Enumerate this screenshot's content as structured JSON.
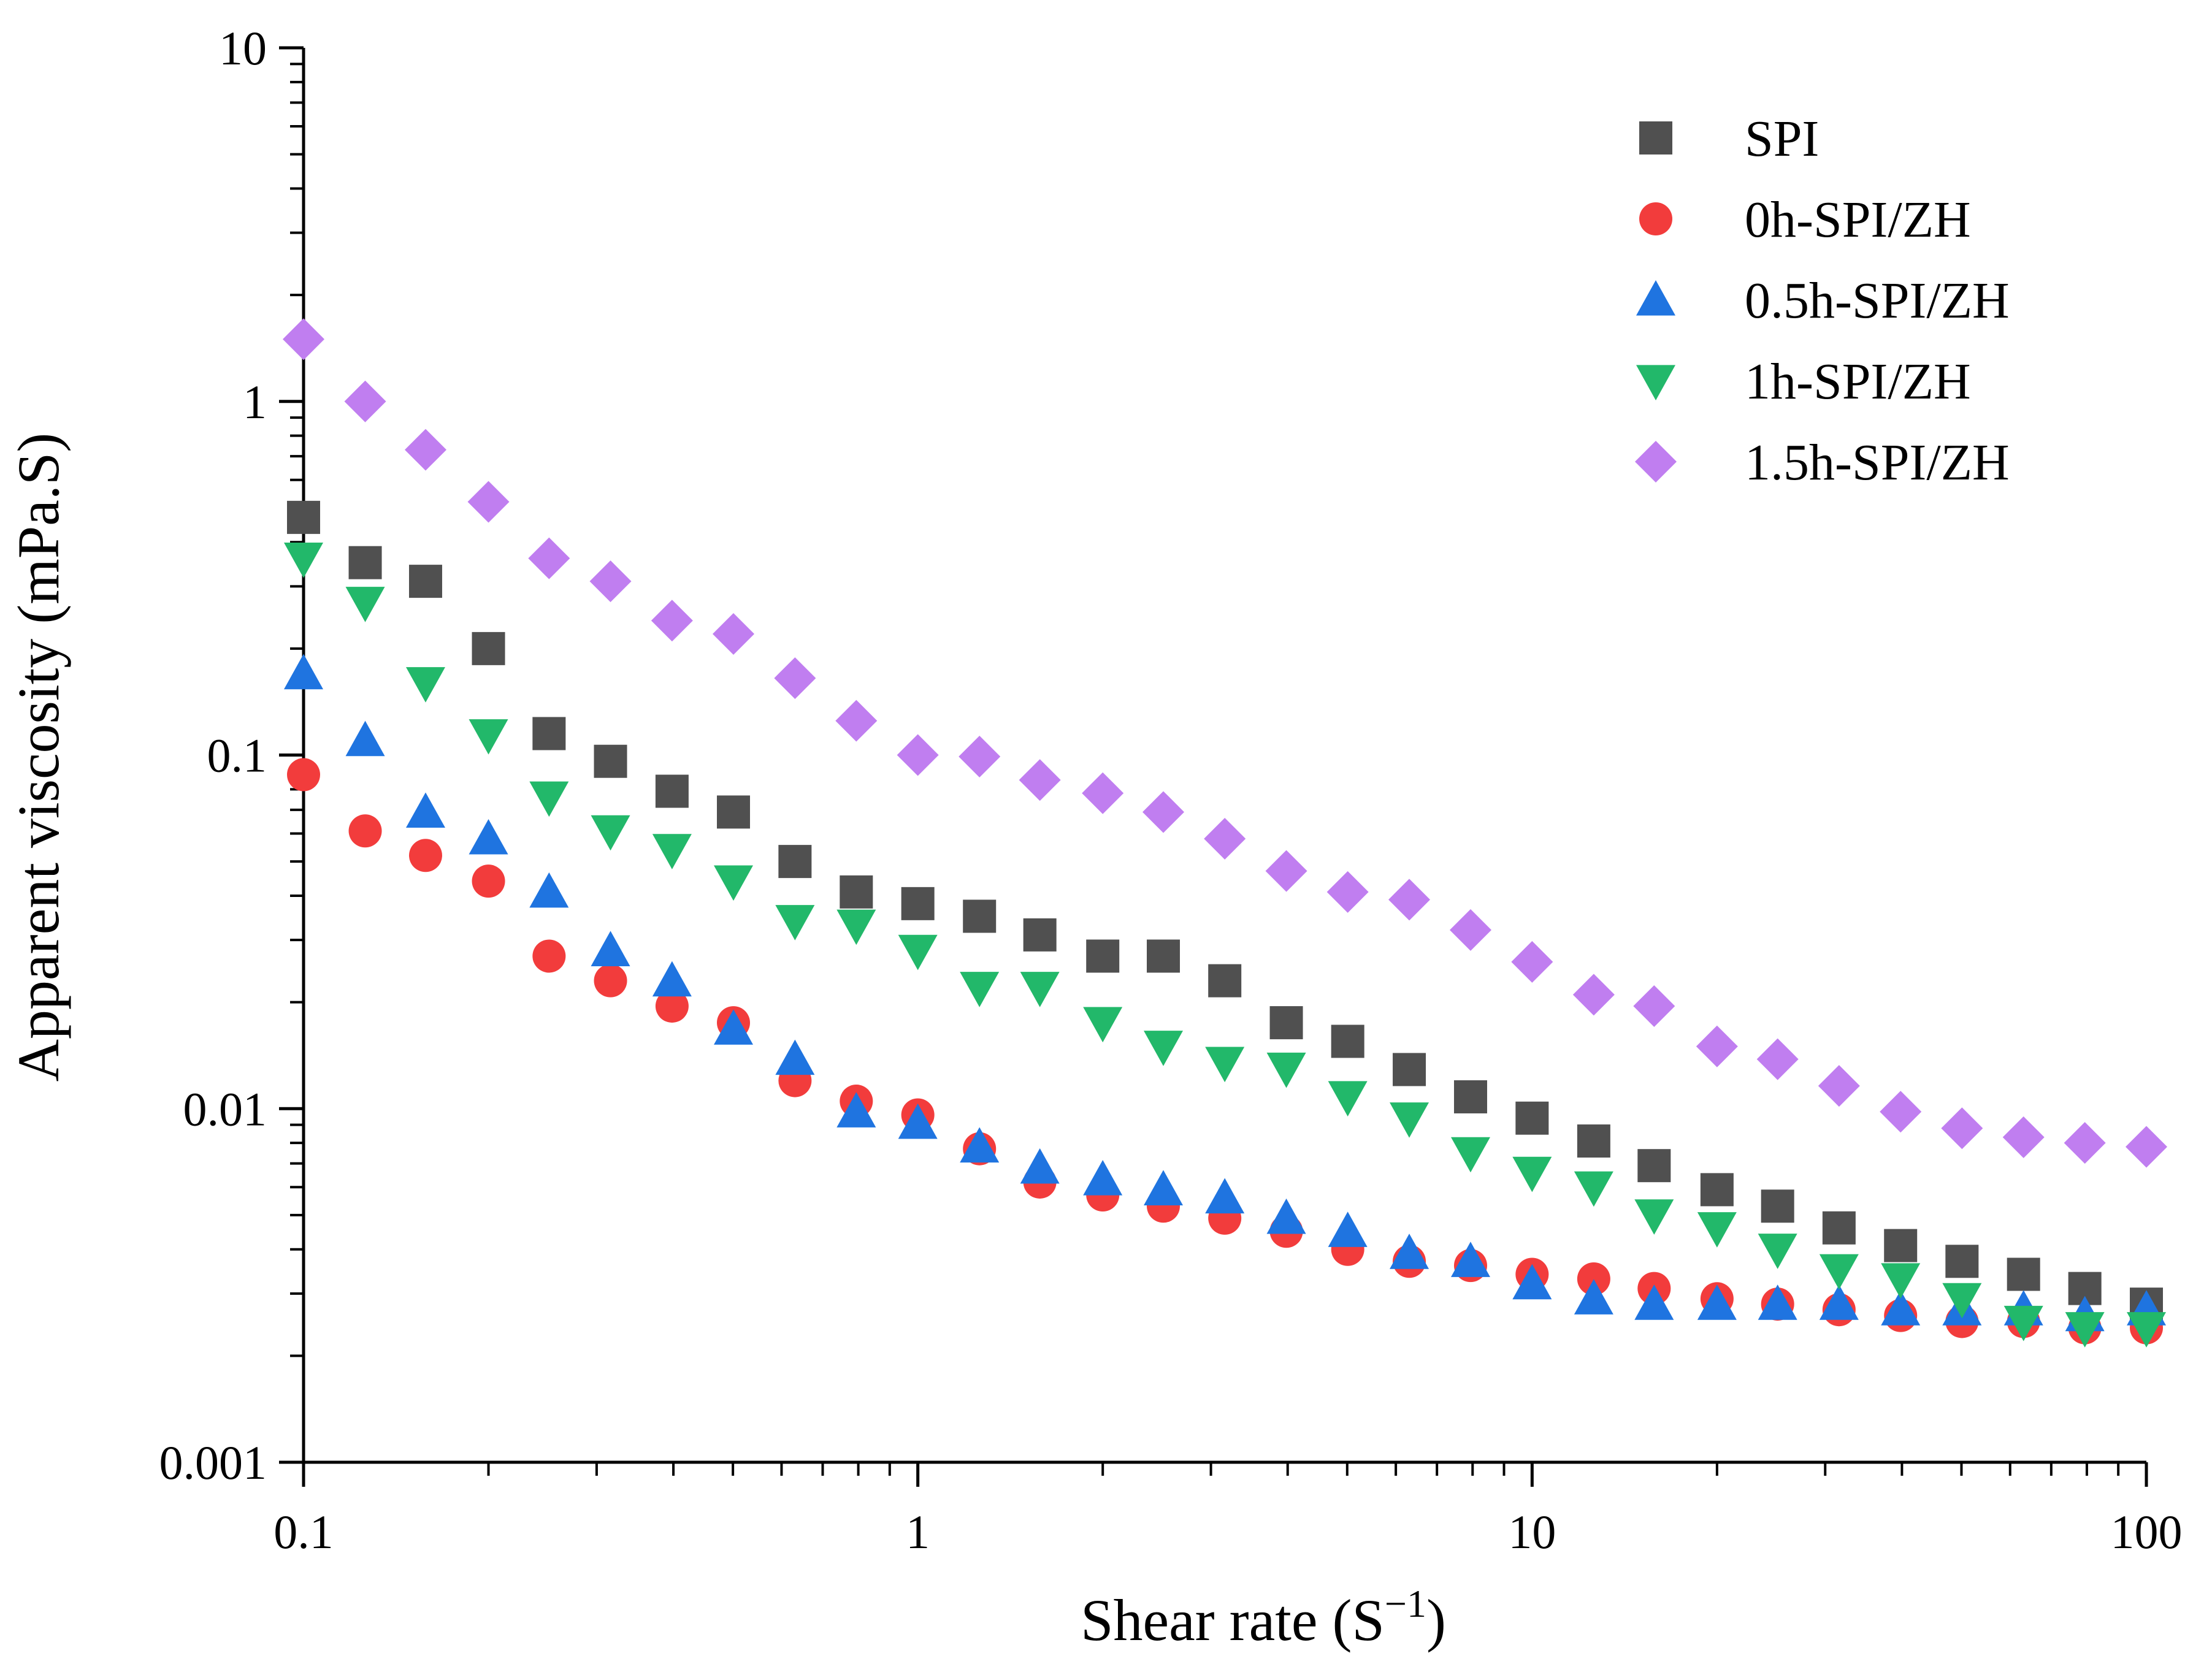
{
  "chart_data": {
    "type": "scatter",
    "title": "",
    "xlabel": "Shear rate (S",
    "xlabel_sup": "−1",
    "xlabel_close": ")",
    "ylabel": "Apparent viscosity (mPa.S)",
    "xscale": "log",
    "yscale": "log",
    "xlim": [
      0.1,
      100
    ],
    "ylim": [
      0.001,
      10
    ],
    "x_ticks": [
      {
        "value": 0.1,
        "label": "0.1"
      },
      {
        "value": 1,
        "label": "1"
      },
      {
        "value": 10,
        "label": "10"
      },
      {
        "value": 100,
        "label": "100"
      }
    ],
    "y_ticks": [
      {
        "value": 0.001,
        "label": "0.001"
      },
      {
        "value": 0.01,
        "label": "0.01"
      },
      {
        "value": 0.1,
        "label": "0.1"
      },
      {
        "value": 1,
        "label": "1"
      },
      {
        "value": 10,
        "label": "10"
      }
    ],
    "legend_position": "top-right",
    "x": [
      0.1,
      0.126,
      0.158,
      0.2,
      0.251,
      0.316,
      0.398,
      0.501,
      0.631,
      0.794,
      1.0,
      1.26,
      1.58,
      2.0,
      2.51,
      3.16,
      3.98,
      5.01,
      6.31,
      7.94,
      10.0,
      12.6,
      15.8,
      20.0,
      25.1,
      31.6,
      39.8,
      50.1,
      63.1,
      79.4,
      100
    ],
    "series": [
      {
        "name": "SPI",
        "marker": "square",
        "color": "#505050",
        "values": [
          0.47,
          0.35,
          0.31,
          0.2,
          0.115,
          0.096,
          0.079,
          0.069,
          0.05,
          0.041,
          0.038,
          0.035,
          0.031,
          0.027,
          0.027,
          0.023,
          0.0175,
          0.0155,
          0.0129,
          0.0108,
          0.0094,
          0.0081,
          0.0069,
          0.0059,
          0.0053,
          0.0046,
          0.0041,
          0.0037,
          0.0034,
          0.0031,
          0.0028
        ]
      },
      {
        "name": "0h-SPI/ZH",
        "marker": "circle",
        "color": "#f23c3c",
        "values": [
          0.088,
          0.061,
          0.052,
          0.044,
          0.027,
          0.023,
          0.0195,
          0.0175,
          0.012,
          0.0105,
          0.0096,
          0.0077,
          0.0062,
          0.0057,
          0.0053,
          0.0049,
          0.0045,
          0.004,
          0.0037,
          0.0036,
          0.0034,
          0.0033,
          0.0031,
          0.0029,
          0.0028,
          0.0027,
          0.0026,
          0.0025,
          0.0025,
          0.0024,
          0.0024
        ]
      },
      {
        "name": "0.5h-SPI/ZH",
        "marker": "triangle-up",
        "color": "#1f74e0",
        "values": [
          0.17,
          0.11,
          0.069,
          0.058,
          0.041,
          0.028,
          0.023,
          0.0168,
          0.0138,
          0.0098,
          0.0091,
          0.0078,
          0.0068,
          0.0063,
          0.0059,
          0.0056,
          0.0049,
          0.0045,
          0.0039,
          0.0037,
          0.0032,
          0.0029,
          0.0028,
          0.0028,
          0.0028,
          0.0028,
          0.0027,
          0.0027,
          0.0027,
          0.0026,
          0.0027
        ]
      },
      {
        "name": "1h-SPI/ZH",
        "marker": "triangle-down",
        "color": "#22b86a",
        "values": [
          0.36,
          0.27,
          0.16,
          0.114,
          0.076,
          0.061,
          0.054,
          0.044,
          0.034,
          0.033,
          0.028,
          0.022,
          0.022,
          0.0175,
          0.015,
          0.0135,
          0.013,
          0.0108,
          0.0094,
          0.0075,
          0.0066,
          0.006,
          0.005,
          0.0046,
          0.004,
          0.0035,
          0.0033,
          0.0029,
          0.0025,
          0.0024,
          0.0024
        ]
      },
      {
        "name": "1.5h-SPI/ZH",
        "marker": "diamond",
        "color": "#c07ef0",
        "values": [
          1.5,
          1.0,
          0.73,
          0.52,
          0.36,
          0.31,
          0.24,
          0.22,
          0.165,
          0.125,
          0.1,
          0.099,
          0.085,
          0.078,
          0.069,
          0.058,
          0.047,
          0.041,
          0.039,
          0.032,
          0.026,
          0.021,
          0.0195,
          0.015,
          0.0138,
          0.0116,
          0.0098,
          0.0088,
          0.0083,
          0.008,
          0.0078
        ]
      }
    ]
  }
}
